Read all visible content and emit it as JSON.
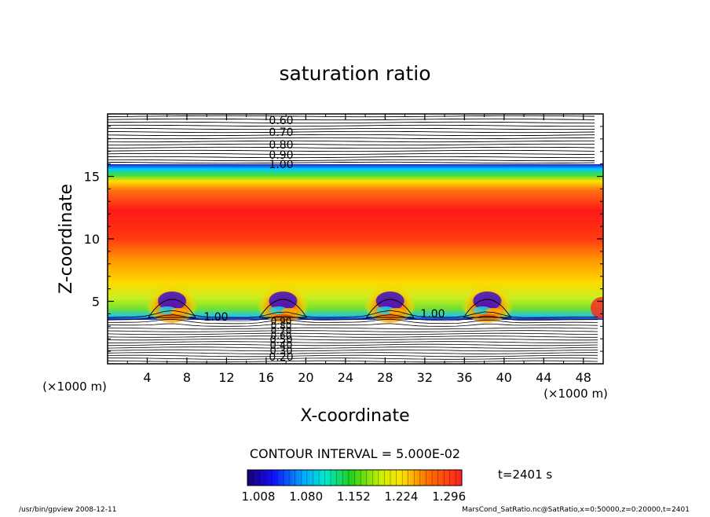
{
  "chart_data": {
    "type": "heatmap",
    "title": "saturation ratio",
    "xlabel": "X-coordinate",
    "ylabel": "Z-coordinate",
    "x_unit": "(×1000 m)",
    "y_unit": "(×1000 m)",
    "xlim": [
      0,
      50
    ],
    "ylim": [
      0,
      20
    ],
    "x_ticks": [
      4,
      8,
      12,
      16,
      20,
      24,
      28,
      32,
      36,
      40,
      44,
      48
    ],
    "y_ticks": [
      5,
      10,
      15
    ],
    "contour_interval_label": "CONTOUR INTERVAL = 5.000E-02",
    "time_label": "t=2401 s",
    "colorbar": {
      "min": 1.008,
      "max": 1.332,
      "tick_values": [
        1.008,
        1.08,
        1.152,
        1.224,
        1.296
      ],
      "tick_labels": [
        "1.008",
        "1.080",
        "1.152",
        "1.224",
        "1.296"
      ]
    },
    "contour_labels_upper": [
      "0.60",
      "0.70",
      "0.80",
      "0.90",
      "1.00"
    ],
    "contour_labels_lower": [
      "0.90",
      "0.80",
      "0.70",
      "0.60",
      "0.50",
      "0.40",
      "0.30",
      "0.20"
    ],
    "contour_label_inner": "1.00",
    "plumes_x": [
      6.5,
      17.7,
      28.5,
      38.3
    ],
    "footer_left": "/usr/bin/gpview   2008-12-11",
    "footer_right": "MarsCond_SatRatio.nc@SatRatio,x=0:50000,z=0:20000,t=2401"
  }
}
